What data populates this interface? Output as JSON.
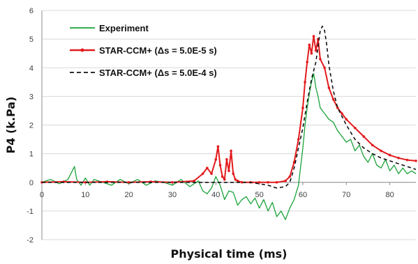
{
  "chart_data": {
    "type": "line",
    "title": "",
    "xlabel": "Physical time (ms)",
    "ylabel": "P4 (k.Pa)",
    "xlim": [
      0,
      86
    ],
    "ylim": [
      -2,
      6
    ],
    "xticks": [
      0,
      10,
      20,
      30,
      40,
      50,
      60,
      70,
      80
    ],
    "yticks": [
      -2,
      -1,
      0,
      1,
      2,
      3,
      4,
      5,
      6
    ],
    "grid": "horizontal",
    "legend_position": "top-left",
    "series": [
      {
        "name": "Experiment",
        "color": "#1aa33a",
        "style": "solid",
        "markers": false,
        "x": [
          0,
          2,
          4,
          6,
          7.5,
          8,
          9,
          10,
          11,
          12,
          14,
          16,
          18,
          20,
          22,
          24,
          26,
          28,
          30,
          32,
          34,
          36,
          37,
          38,
          39,
          40,
          41,
          42,
          43,
          44,
          45,
          46,
          47,
          48,
          49,
          50,
          51,
          52,
          53,
          54,
          55,
          56,
          57,
          58,
          59,
          60,
          60.5,
          61,
          61.5,
          62,
          62.5,
          63,
          63.5,
          64,
          65,
          66,
          67,
          68,
          69,
          70,
          71,
          72,
          73,
          74,
          75,
          76,
          77,
          78,
          79,
          80,
          81,
          82,
          83,
          84,
          85,
          86
        ],
        "y": [
          0,
          0.1,
          -0.05,
          0.1,
          0.55,
          0.1,
          -0.1,
          0.15,
          -0.1,
          0.1,
          0,
          -0.1,
          0.1,
          -0.05,
          0.1,
          -0.1,
          0.05,
          0,
          -0.1,
          0.1,
          -0.15,
          0.05,
          -0.3,
          -0.4,
          -0.2,
          0.2,
          -0.1,
          -0.6,
          -0.3,
          -0.35,
          -0.8,
          -0.6,
          -0.5,
          -0.75,
          -0.55,
          -0.9,
          -0.6,
          -1.0,
          -0.7,
          -1.2,
          -1.0,
          -1.3,
          -0.9,
          -0.6,
          -0.1,
          1.2,
          2.0,
          2.6,
          3.1,
          3.5,
          3.8,
          3.3,
          3.0,
          2.6,
          2.4,
          2.2,
          2.1,
          1.8,
          1.6,
          1.4,
          1.5,
          1.1,
          1.3,
          0.9,
          0.7,
          1.0,
          0.6,
          0.5,
          0.8,
          0.4,
          0.6,
          0.3,
          0.5,
          0.3,
          0.4,
          0.3
        ]
      },
      {
        "name": "STAR-CCM+ (Δs = 5.0E-5 s)",
        "color": "#e31a1c",
        "style": "solid",
        "markers": true,
        "x": [
          0,
          5,
          10,
          15,
          20,
          25,
          30,
          35,
          37,
          38,
          39,
          40,
          40.5,
          41,
          41.5,
          42,
          42.5,
          43,
          43.5,
          44,
          44.5,
          45,
          46,
          48,
          50,
          52,
          54,
          56,
          57,
          58,
          59,
          60,
          60.5,
          61,
          61.5,
          62,
          62.5,
          63,
          63.5,
          64,
          65,
          66,
          67,
          68,
          69,
          70,
          72,
          74,
          76,
          78,
          80,
          82,
          84,
          86
        ],
        "y": [
          0,
          0.02,
          0,
          0.02,
          0,
          0.02,
          0,
          0.05,
          0.3,
          0.5,
          0.3,
          0.8,
          1.25,
          0.6,
          0.2,
          0.1,
          0.8,
          0.4,
          1.1,
          0.3,
          0.1,
          0.05,
          0,
          0,
          0,
          0,
          0,
          0.05,
          0.2,
          0.7,
          1.5,
          2.6,
          3.5,
          4.2,
          4.8,
          4.5,
          5.1,
          4.6,
          5.0,
          4.3,
          4.0,
          3.3,
          2.9,
          2.6,
          2.4,
          2.2,
          1.9,
          1.6,
          1.3,
          1.1,
          0.95,
          0.85,
          0.78,
          0.75
        ]
      },
      {
        "name": "STAR-CCM+ (Δs = 5.0E-4 s)",
        "color": "#111111",
        "style": "dashed",
        "markers": false,
        "x": [
          0,
          10,
          20,
          30,
          40,
          44,
          48,
          52,
          54,
          56,
          57,
          58,
          59,
          60,
          61,
          62,
          63,
          64,
          64.5,
          65,
          65.5,
          66,
          67,
          68,
          70,
          72,
          74,
          76,
          78,
          80,
          82,
          84,
          86
        ],
        "y": [
          0,
          0,
          0,
          0,
          0,
          0,
          0,
          -0.1,
          -0.2,
          -0.15,
          0,
          0.5,
          1.2,
          1.9,
          2.8,
          3.6,
          4.2,
          5.3,
          5.45,
          5.3,
          4.8,
          4.1,
          3.2,
          2.6,
          2.0,
          1.5,
          1.2,
          1.0,
          0.85,
          0.75,
          0.65,
          0.55,
          0.45
        ]
      }
    ]
  }
}
